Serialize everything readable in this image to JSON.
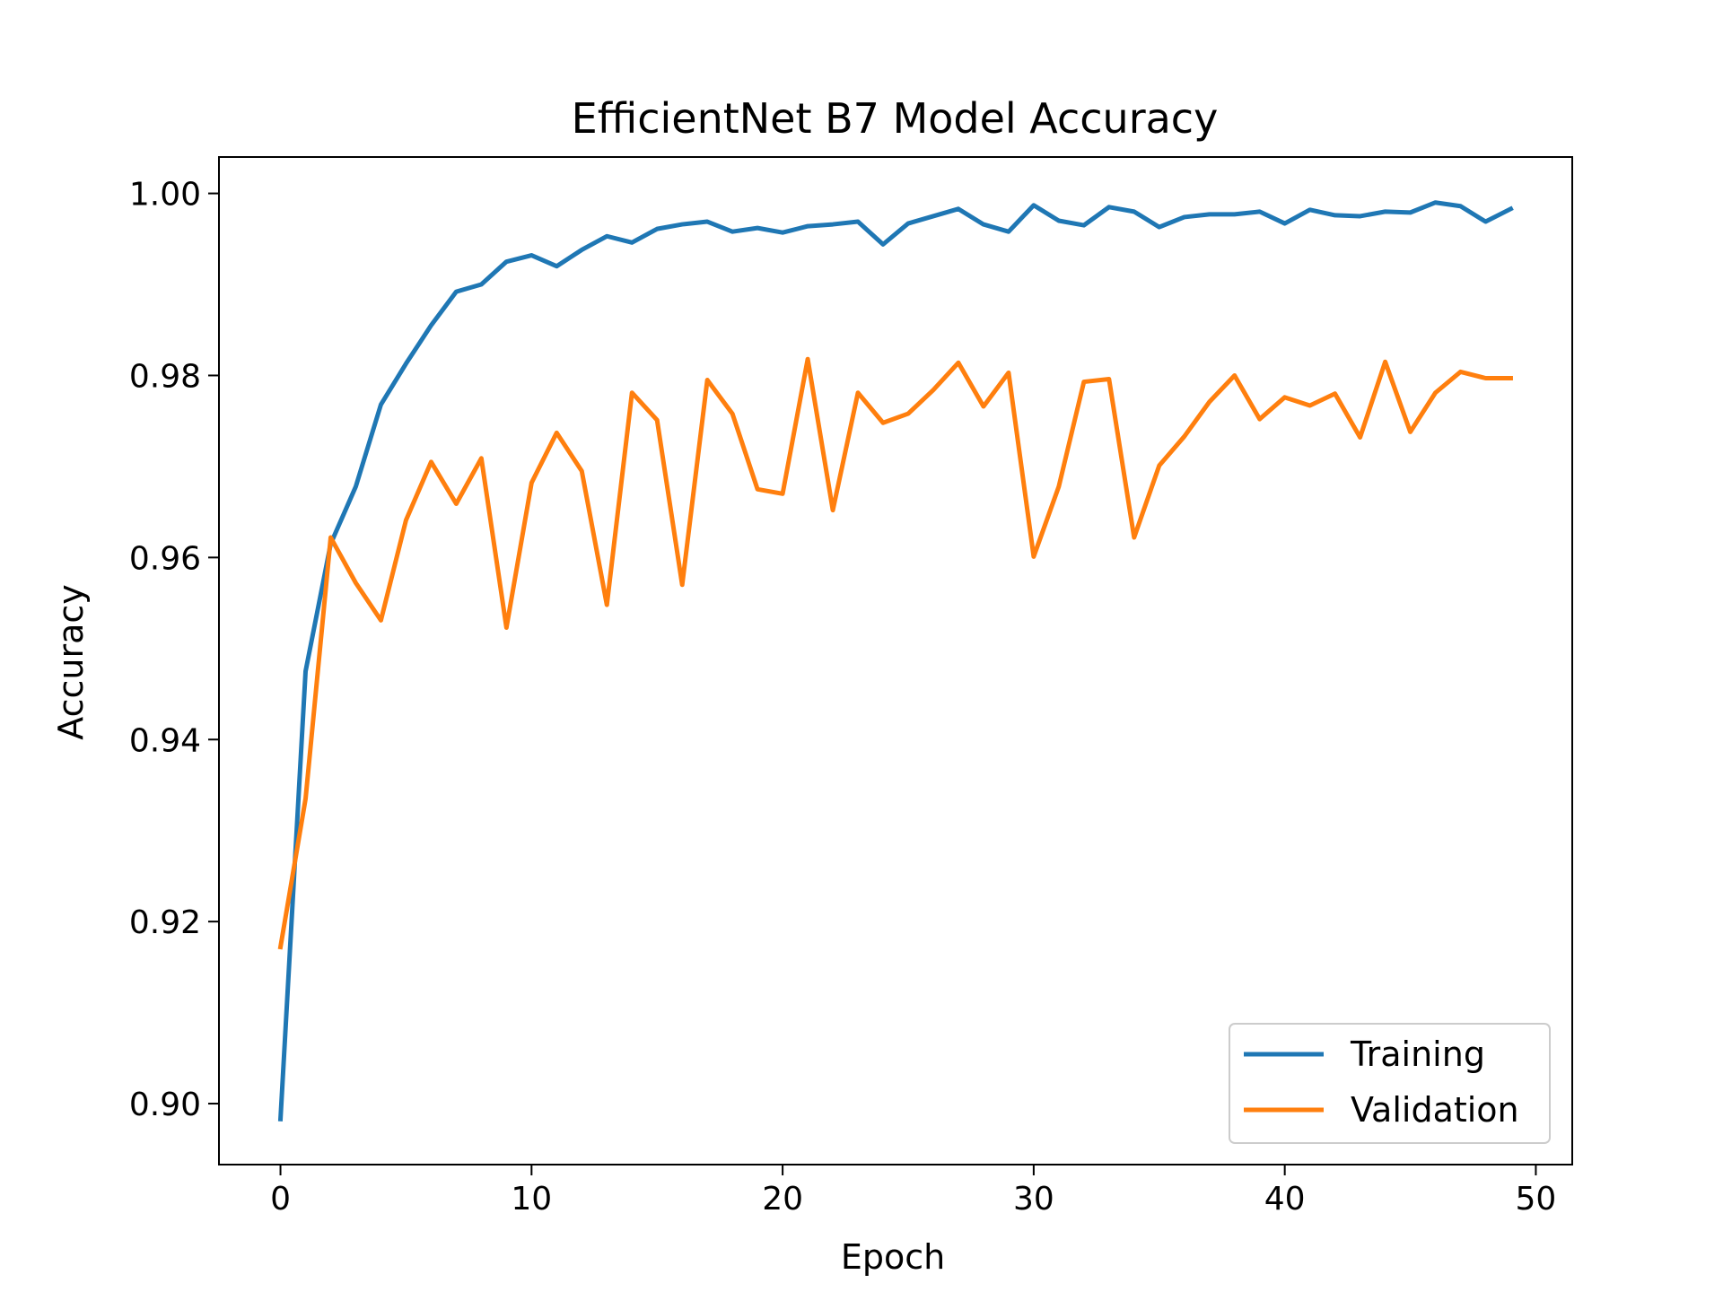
{
  "chart_data": {
    "type": "line",
    "title": "EfficientNet B7 Model Accuracy",
    "xlabel": "Epoch",
    "ylabel": "Accuracy",
    "xlim": [
      -2.45,
      51.45
    ],
    "ylim": [
      0.8933,
      1.004
    ],
    "xticks": [
      0,
      10,
      20,
      30,
      40,
      50
    ],
    "yticks": [
      0.9,
      0.92,
      0.94,
      0.96,
      0.98,
      1.0
    ],
    "ytick_labels": [
      "0.90",
      "0.92",
      "0.94",
      "0.96",
      "0.98",
      "1.00"
    ],
    "legend_position": "lower-right",
    "grid": false,
    "x": [
      0,
      1,
      2,
      3,
      4,
      5,
      6,
      7,
      8,
      9,
      10,
      11,
      12,
      13,
      14,
      15,
      16,
      17,
      18,
      19,
      20,
      21,
      22,
      23,
      24,
      25,
      26,
      27,
      28,
      29,
      30,
      31,
      32,
      33,
      34,
      35,
      36,
      37,
      38,
      39,
      40,
      41,
      42,
      43,
      44,
      45,
      46,
      47,
      48,
      49
    ],
    "series": [
      {
        "name": "Training",
        "color": "#1f77b4",
        "values": [
          0.8983,
          0.9475,
          0.9615,
          0.9678,
          0.9768,
          0.9813,
          0.9855,
          0.9892,
          0.99,
          0.9925,
          0.9932,
          0.992,
          0.9938,
          0.9953,
          0.9946,
          0.9961,
          0.9966,
          0.9969,
          0.9958,
          0.9962,
          0.9957,
          0.9964,
          0.9966,
          0.9969,
          0.9944,
          0.9967,
          0.9975,
          0.9983,
          0.9966,
          0.9958,
          0.9987,
          0.997,
          0.9965,
          0.9985,
          0.998,
          0.9963,
          0.9974,
          0.9977,
          0.9977,
          0.998,
          0.9967,
          0.9982,
          0.9976,
          0.9975,
          0.998,
          0.9979,
          0.999,
          0.9986,
          0.9969,
          0.9983
        ]
      },
      {
        "name": "Validation",
        "color": "#ff7f0e",
        "values": [
          0.9172,
          0.9335,
          0.9622,
          0.9572,
          0.9531,
          0.9641,
          0.9705,
          0.9659,
          0.9709,
          0.9523,
          0.9682,
          0.9737,
          0.9695,
          0.9548,
          0.9781,
          0.9751,
          0.957,
          0.9795,
          0.9758,
          0.9675,
          0.967,
          0.9818,
          0.9652,
          0.9781,
          0.9748,
          0.9758,
          0.9784,
          0.9814,
          0.9766,
          0.9803,
          0.9601,
          0.9678,
          0.9793,
          0.9796,
          0.9622,
          0.9701,
          0.9733,
          0.9771,
          0.98,
          0.9752,
          0.9776,
          0.9767,
          0.978,
          0.9732,
          0.9815,
          0.9738,
          0.9781,
          0.9804,
          0.9797,
          0.9797
        ]
      }
    ]
  }
}
